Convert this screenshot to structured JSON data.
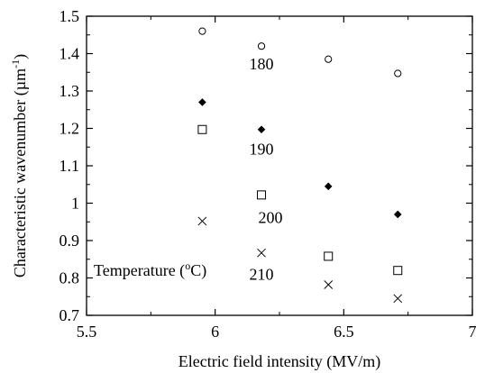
{
  "chart_data": {
    "type": "scatter",
    "title": "",
    "xlabel": "Electric field intensity (MV/m)",
    "ylabel_base": "Characteristic wavenumber (",
    "ylabel_unit": "µm",
    "ylabel_exp": "-1",
    "ylabel_close": ")",
    "xlim": [
      5.5,
      7
    ],
    "ylim": [
      0.7,
      1.5
    ],
    "xticks": [
      "5.5",
      "6",
      "6.5",
      "7"
    ],
    "yticks": [
      "0.7",
      "0.8",
      "0.9",
      "1",
      "1.1",
      "1.2",
      "1.3",
      "1.4",
      "1.5"
    ],
    "grid": false,
    "legend_title_base": "Temperature (",
    "legend_title_sup": "o",
    "legend_title_close": "C)",
    "series": [
      {
        "name": "180",
        "marker": "circle",
        "x": [
          5.95,
          6.18,
          6.44,
          6.71
        ],
        "y": [
          1.46,
          1.42,
          1.385,
          1.347
        ]
      },
      {
        "name": "190",
        "marker": "diamond",
        "x": [
          5.95,
          6.18,
          6.44,
          6.71
        ],
        "y": [
          1.27,
          1.197,
          1.045,
          0.97
        ]
      },
      {
        "name": "200",
        "marker": "square",
        "x": [
          5.95,
          6.18,
          6.44,
          6.71
        ],
        "y": [
          1.197,
          1.022,
          0.858,
          0.82
        ]
      },
      {
        "name": "210",
        "marker": "cross",
        "x": [
          5.95,
          6.18,
          6.44,
          6.71
        ],
        "y": [
          0.952,
          0.867,
          0.782,
          0.745
        ]
      }
    ]
  }
}
